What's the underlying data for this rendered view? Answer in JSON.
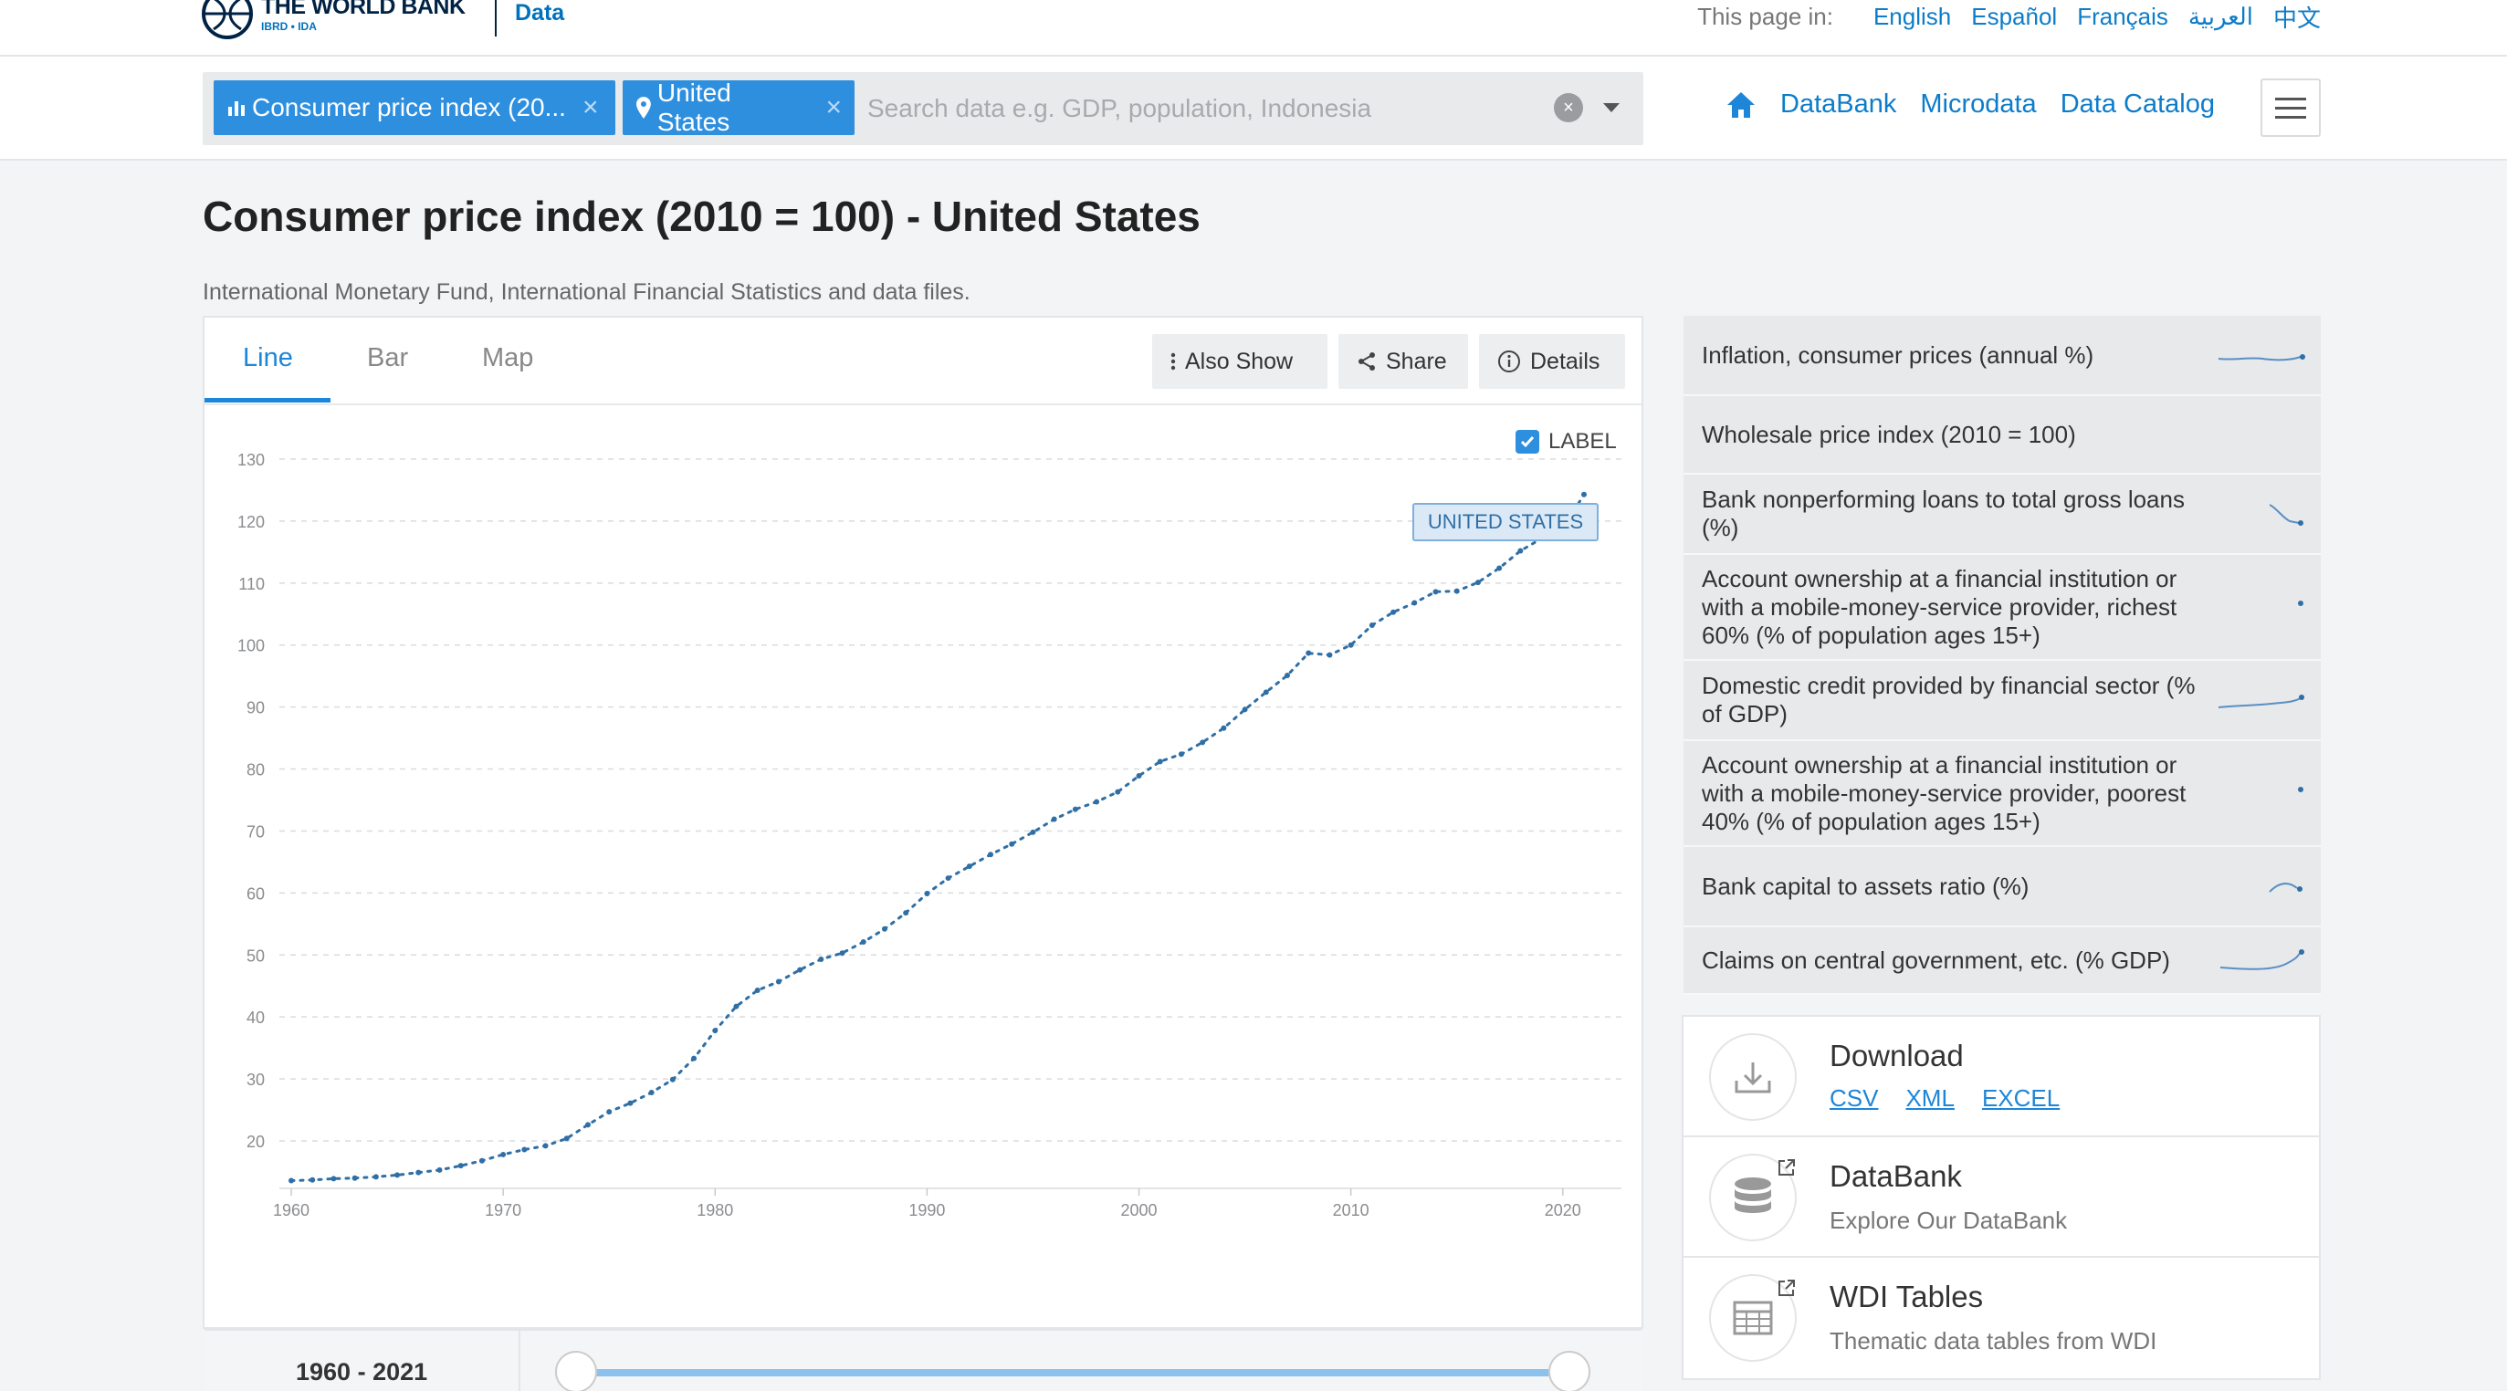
{
  "header": {
    "brand_name": "THE WORLD BANK",
    "brand_sub": "IBRD • IDA",
    "section": "Data",
    "languages_label": "This page in:",
    "languages": [
      "English",
      "Español",
      "Français",
      "العربية",
      "中文"
    ]
  },
  "nav": {
    "chips": [
      {
        "label": "Consumer price index (20...",
        "icon": "bar-chart-icon"
      },
      {
        "label": "United States",
        "icon": "location-pin-icon"
      }
    ],
    "search_placeholder": "Search data e.g. GDP, population, Indonesia",
    "links": [
      "DataBank",
      "Microdata",
      "Data Catalog"
    ]
  },
  "page": {
    "title": "Consumer price index (2010 = 100) - United States",
    "source": "International Monetary Fund, International Financial Statistics and data files."
  },
  "chart_panel": {
    "tabs": [
      "Line",
      "Bar",
      "Map"
    ],
    "active_tab": "Line",
    "buttons": {
      "also_show": "Also Show",
      "share": "Share",
      "details": "Details"
    },
    "label_toggle": "LABEL",
    "series_label": "UNITED STATES",
    "range_start": "1960",
    "range_sep": " - ",
    "range_end": "2021"
  },
  "chart_data": {
    "type": "line",
    "title": "",
    "xlabel": "",
    "ylabel": "",
    "xlim": [
      1960,
      2021
    ],
    "ylim": [
      13,
      130
    ],
    "x_ticks": [
      1960,
      1970,
      1980,
      1990,
      2000,
      2010,
      2020
    ],
    "y_ticks": [
      20,
      30,
      40,
      50,
      60,
      70,
      80,
      90,
      100,
      110,
      120,
      130
    ],
    "grid": true,
    "color": "#2f6fa6",
    "series": [
      {
        "name": "UNITED STATES",
        "x": [
          1960,
          1961,
          1962,
          1963,
          1964,
          1965,
          1966,
          1967,
          1968,
          1969,
          1970,
          1971,
          1972,
          1973,
          1974,
          1975,
          1976,
          1977,
          1978,
          1979,
          1980,
          1981,
          1982,
          1983,
          1984,
          1985,
          1986,
          1987,
          1988,
          1989,
          1990,
          1991,
          1992,
          1993,
          1994,
          1995,
          1996,
          1997,
          1998,
          1999,
          2000,
          2001,
          2002,
          2003,
          2004,
          2005,
          2006,
          2007,
          2008,
          2009,
          2010,
          2011,
          2012,
          2013,
          2014,
          2015,
          2016,
          2017,
          2018,
          2019,
          2020,
          2021
        ],
        "values": [
          13.6,
          13.7,
          13.9,
          14.0,
          14.2,
          14.5,
          14.9,
          15.3,
          16.0,
          16.8,
          17.8,
          18.6,
          19.2,
          20.4,
          22.6,
          24.7,
          26.1,
          27.8,
          29.9,
          33.3,
          37.8,
          41.7,
          44.3,
          45.7,
          47.6,
          49.3,
          50.3,
          52.1,
          54.2,
          56.8,
          59.9,
          62.4,
          64.3,
          66.2,
          67.9,
          69.8,
          71.9,
          73.5,
          74.7,
          76.3,
          78.9,
          81.2,
          82.4,
          84.3,
          86.6,
          89.6,
          92.4,
          95.1,
          98.7,
          98.4,
          100.0,
          103.2,
          105.3,
          106.8,
          108.6,
          108.7,
          110.1,
          112.4,
          115.2,
          117.2,
          118.7,
          124.3
        ]
      }
    ]
  },
  "related": {
    "items": [
      {
        "label": "Inflation, consumer prices (annual %)",
        "spark": "flat-line-icon"
      },
      {
        "label": "Wholesale price index (2010 = 100)",
        "spark": ""
      },
      {
        "label": "Bank nonperforming loans to total gross loans (%)",
        "spark": "down-slope-icon"
      },
      {
        "label": "Account ownership at a financial institution or with a mobile-money-service provider, richest 60% (% of population ages 15+)",
        "spark": "dot-icon"
      },
      {
        "label": "Domestic credit provided by financial sector (% of GDP)",
        "spark": "rising-line-icon"
      },
      {
        "label": "Account ownership at a financial institution or with a mobile-money-service provider, poorest 40% (% of population ages 15+)",
        "spark": "dot-icon"
      },
      {
        "label": "Bank capital to assets ratio (%)",
        "spark": "hump-line-icon"
      },
      {
        "label": "Claims on central government, etc. (% GDP)",
        "spark": "upturn-line-icon"
      }
    ]
  },
  "cards": {
    "download": {
      "title": "Download",
      "links": [
        "CSV",
        "XML",
        "EXCEL"
      ]
    },
    "databank": {
      "title": "DataBank",
      "subtitle": "Explore Our DataBank"
    },
    "wdi": {
      "title": "WDI Tables",
      "subtitle": "Thematic data tables from WDI"
    }
  }
}
